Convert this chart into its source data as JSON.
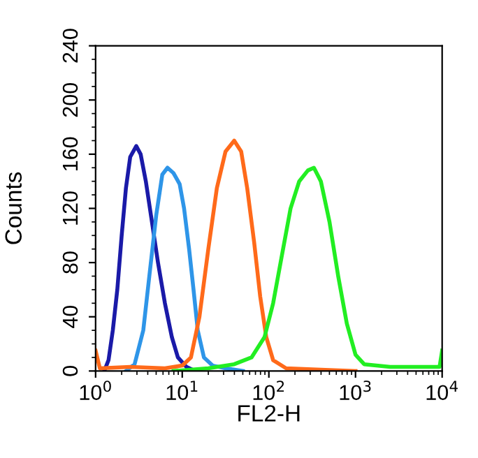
{
  "chart_data": {
    "type": "line",
    "xlabel": "FL2-H",
    "ylabel": "Counts",
    "log": "x",
    "xlim": [
      1,
      10000
    ],
    "ylim": [
      0,
      240
    ],
    "xticks": [
      {
        "value": 1,
        "label": "10$^{0}$"
      },
      {
        "value": 10,
        "label": "10$^{1}$"
      },
      {
        "value": 100,
        "label": "10$^{2}$"
      },
      {
        "value": 1000,
        "label": "10$^{3}$"
      },
      {
        "value": 10000,
        "label": "10$^{4}$"
      }
    ],
    "yticks": [
      0,
      40,
      80,
      120,
      160,
      200,
      240
    ],
    "grid": false,
    "series": [
      {
        "color": "#1a1aa8",
        "x": [
          1.26,
          1.41,
          1.58,
          1.78,
          2.0,
          2.24,
          2.51,
          2.95,
          3.31,
          3.8,
          4.47,
          5.25,
          6.31,
          7.59,
          8.91,
          11.2,
          14.1
        ],
        "values": [
          0,
          8,
          30,
          60,
          100,
          135,
          158,
          166,
          160,
          140,
          110,
          80,
          50,
          25,
          10,
          3,
          0
        ]
      },
      {
        "color": "#2e95e8",
        "x": [
          2.24,
          2.82,
          3.55,
          4.17,
          5.01,
          5.89,
          6.76,
          7.94,
          9.33,
          10.5,
          12.0,
          13.5,
          15.1,
          17.8,
          22.4,
          31.6,
          50.1
        ],
        "values": [
          0,
          5,
          30,
          70,
          115,
          145,
          150,
          146,
          138,
          120,
          90,
          60,
          30,
          10,
          4,
          2,
          0
        ]
      },
      {
        "color": "#ff6a1a",
        "x": [
          1,
          1.12,
          2.51,
          6.31,
          10,
          12.6,
          15.8,
          20,
          25.1,
          31.6,
          39.8,
          47.9,
          56.2,
          67.6,
          79.4,
          93.3,
          112,
          158,
          398,
          1000
        ],
        "values": [
          15,
          2,
          3,
          2,
          4,
          10,
          40,
          90,
          135,
          162,
          170,
          162,
          135,
          95,
          55,
          25,
          8,
          2,
          1,
          0
        ]
      },
      {
        "color": "#22ee22",
        "x": [
          7.94,
          20,
          39.8,
          63.1,
          89.1,
          112,
          141,
          178,
          224,
          282,
          331,
          398,
          501,
          631,
          794,
          1000,
          1259,
          2512,
          5012,
          9333,
          10000
        ],
        "values": [
          0,
          2,
          5,
          10,
          25,
          50,
          85,
          120,
          140,
          148,
          150,
          140,
          110,
          70,
          35,
          12,
          5,
          3,
          3,
          3,
          15
        ]
      }
    ]
  }
}
